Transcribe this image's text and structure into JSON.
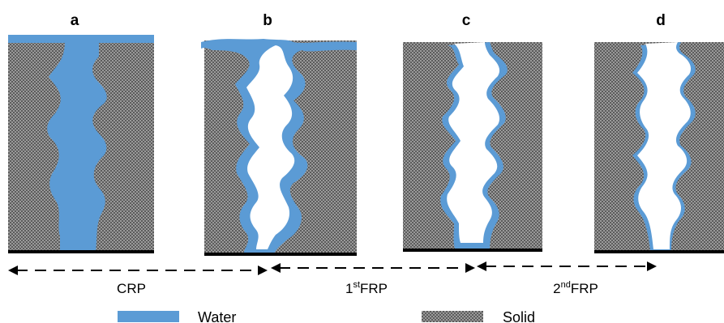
{
  "panels": [
    {
      "id": "a",
      "label": "a"
    },
    {
      "id": "b",
      "label": "b"
    },
    {
      "id": "c",
      "label": "c"
    },
    {
      "id": "d",
      "label": "d"
    }
  ],
  "stages": [
    {
      "id": "crp",
      "main": "CRP",
      "sup": "",
      "tail": ""
    },
    {
      "id": "frp1",
      "main": "1",
      "sup": "st",
      "tail": "FRP"
    },
    {
      "id": "frp2",
      "main": "2",
      "sup": "nd",
      "tail": "FRP"
    }
  ],
  "legend": {
    "water": {
      "label": "Water",
      "color": "#5b9bd5"
    },
    "solid": {
      "label": "Solid",
      "color": "#6e6e6e"
    }
  }
}
